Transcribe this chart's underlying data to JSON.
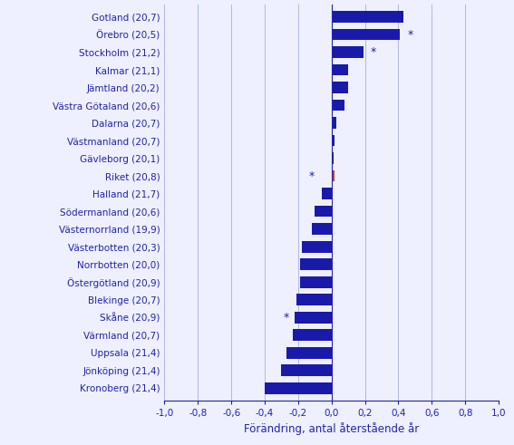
{
  "categories": [
    "Gotland (20,7)",
    "Örebro (20,5)",
    "Stockholm (21,2)",
    "Kalmar (21,1)",
    "Jämtland (20,2)",
    "Västra Götaland (20,6)",
    "Dalarna (20,7)",
    "Västmanland (20,7)",
    "Gävleborg (20,1)",
    "Riket (20,8)",
    "Halland (21,7)",
    "Södermanland (20,6)",
    "Västernorrland (19,9)",
    "Västerbotten (20,3)",
    "Norrbotten (20,0)",
    "Östergötland (20,9)",
    "Blekinge (20,7)",
    "Skåne (20,9)",
    "Värmland (20,7)",
    "Uppsala (21,4)",
    "Jönköping (21,4)",
    "Kronoberg (21,4)"
  ],
  "values": [
    0.43,
    0.41,
    0.19,
    0.1,
    0.1,
    0.08,
    0.03,
    0.02,
    0.01,
    0.02,
    -0.06,
    -0.1,
    -0.12,
    -0.18,
    -0.19,
    -0.19,
    -0.21,
    -0.22,
    -0.23,
    -0.27,
    -0.3,
    -0.4
  ],
  "bar_colors": [
    "#1a1aaa",
    "#1a1aaa",
    "#1a1aaa",
    "#1a1aaa",
    "#1a1aaa",
    "#1a1aaa",
    "#1a1aaa",
    "#1a1aaa",
    "#1a1aaa",
    "#cc4400",
    "#1a1aaa",
    "#1a1aaa",
    "#1a1aaa",
    "#1a1aaa",
    "#1a1aaa",
    "#1a1aaa",
    "#1a1aaa",
    "#1a1aaa",
    "#1a1aaa",
    "#1a1aaa",
    "#1a1aaa",
    "#1a1aaa"
  ],
  "star_annotations": {
    "Örebro (20,5)": 0.47,
    "Stockholm (21,2)": 0.25,
    "Riket (20,8)": -0.12,
    "Skåne (20,9)": -0.27
  },
  "xlabel": "Förändring, antal återstående år",
  "xlim": [
    -1.0,
    1.0
  ],
  "xticks": [
    -1.0,
    -0.8,
    -0.6,
    -0.4,
    -0.2,
    0.0,
    0.2,
    0.4,
    0.6,
    0.8,
    1.0
  ],
  "xtick_labels": [
    "-1,0",
    "-0,8",
    "-0,6",
    "-0,4",
    "-0,2",
    "0,0",
    "0,2",
    "0,4",
    "0,6",
    "0,8",
    "1,0"
  ],
  "label_color": "#2222aa",
  "bar_color_main": "#1a1aaa",
  "bar_color_riket": "#cc4400",
  "background_color": "#eef0ff",
  "grid_color": "#b0b8dd",
  "font_size_labels": 7.5,
  "font_size_xlabel": 8.5,
  "font_size_xticks": 7.5
}
